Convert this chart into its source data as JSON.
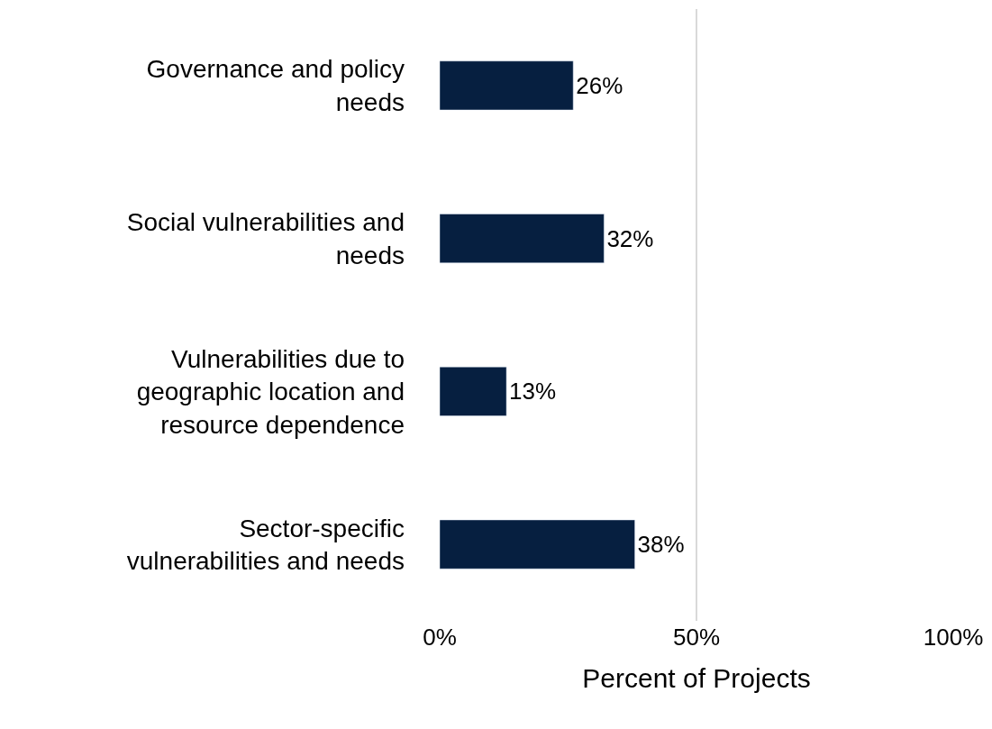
{
  "chart_data": {
    "type": "bar",
    "orientation": "horizontal",
    "categories": [
      "Governance and policy needs",
      "Social vulnerabilities and needs",
      "Vulnerabilities due to geographic location and resource dependence",
      "Sector-specific vulnerabilities and needs"
    ],
    "values": [
      26,
      32,
      13,
      38
    ],
    "value_labels": [
      "26%",
      "32%",
      "13%",
      "38%"
    ],
    "color": "#061f40",
    "xlim": [
      0,
      100
    ],
    "xticks": [
      {
        "value": 0,
        "label": "0%"
      },
      {
        "value": 50,
        "label": "50%"
      },
      {
        "value": 100,
        "label": "100%"
      }
    ],
    "xlabel": "Percent of Projects",
    "grid": "x",
    "legend": false
  }
}
